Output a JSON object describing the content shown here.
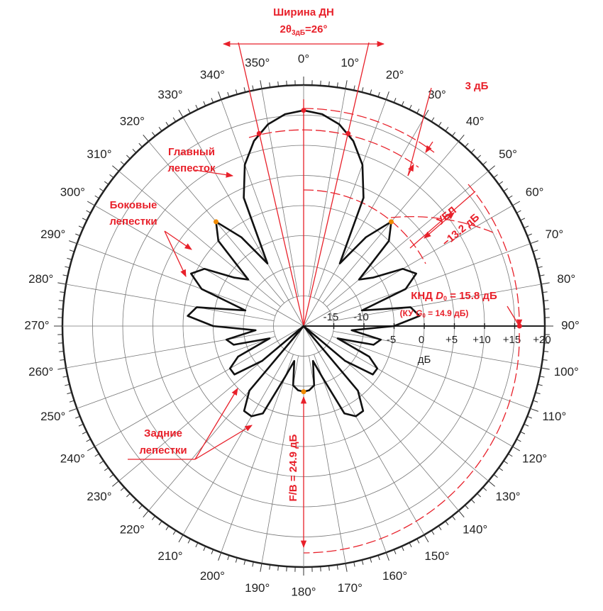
{
  "chart_data": {
    "type": "polar",
    "theta": [
      0,
      5,
      10,
      15,
      20,
      25,
      30,
      35,
      40,
      45,
      50,
      55,
      60,
      65,
      70,
      75,
      80,
      85,
      90,
      95,
      100,
      105,
      110,
      115,
      120,
      125,
      130,
      135,
      140,
      145,
      150,
      155,
      160,
      165,
      170,
      175,
      180,
      185,
      190,
      195,
      200,
      205,
      210,
      215,
      220,
      225,
      230,
      235,
      240,
      245,
      250,
      255,
      260,
      265,
      270,
      275,
      280,
      285,
      290,
      295,
      300,
      305,
      310,
      315,
      320,
      325,
      330,
      335,
      340,
      345,
      350,
      355
    ],
    "r": [
      15.8,
      15.3,
      14.0,
      11.8,
      8.5,
      3.5,
      -8,
      -2,
      2.6,
      0,
      -8,
      -6,
      -1,
      0.6,
      -2,
      -10,
      -2,
      -0.7,
      -5,
      -12,
      -7,
      -8,
      -14,
      -8,
      -5.9,
      -6,
      -11,
      -20,
      -6,
      -2.8,
      -2.7,
      -4,
      -11,
      -14,
      -10,
      -9.3,
      -9.1,
      -9.3,
      -10,
      -14,
      -11,
      -4,
      -2.7,
      -2.8,
      -6,
      -20,
      -11,
      -6,
      -5.9,
      -8,
      -14,
      -8,
      -7,
      -12,
      -5,
      -0.7,
      -2,
      -10,
      -2,
      0.6,
      -1,
      -6,
      -8,
      0,
      2.6,
      -2,
      -8,
      3.5,
      8.5,
      11.8,
      14.0,
      15.3
    ],
    "color": "#111111",
    "rlim": [
      -20,
      20
    ],
    "rticks": [
      -15,
      -10,
      -5,
      0,
      {
        "value": 5,
        "label": "+5"
      },
      {
        "value": 10,
        "label": "+10"
      },
      {
        "value": 15,
        "label": "+15"
      },
      {
        "value": 20,
        "label": "+20"
      }
    ],
    "r_label": "дБ",
    "thetaticks": [
      {
        "value": 0,
        "label": "0°"
      },
      {
        "value": 10,
        "label": "10°"
      },
      {
        "value": 20,
        "label": "20°"
      },
      {
        "value": 30,
        "label": "30°"
      },
      {
        "value": 40,
        "label": "40°"
      },
      {
        "value": 50,
        "label": "50°"
      },
      {
        "value": 60,
        "label": "60°"
      },
      {
        "value": 70,
        "label": "70°"
      },
      {
        "value": 80,
        "label": "80°"
      },
      {
        "value": 90,
        "label": "90°"
      },
      {
        "value": 100,
        "label": "100°"
      },
      {
        "value": 110,
        "label": "110°"
      },
      {
        "value": 120,
        "label": "120°"
      },
      {
        "value": 130,
        "label": "130°"
      },
      {
        "value": 140,
        "label": "140°"
      },
      {
        "value": 150,
        "label": "150°"
      },
      {
        "value": 160,
        "label": "160°"
      },
      {
        "value": 170,
        "label": "170°"
      },
      {
        "value": 180,
        "label": "180°"
      },
      {
        "value": 190,
        "label": "190°"
      },
      {
        "value": 200,
        "label": "200°"
      },
      {
        "value": 210,
        "label": "210°"
      },
      {
        "value": 220,
        "label": "220°"
      },
      {
        "value": 230,
        "label": "230°"
      },
      {
        "value": 240,
        "label": "240°"
      },
      {
        "value": 250,
        "label": "250°"
      },
      {
        "value": 260,
        "label": "260°"
      },
      {
        "value": 270,
        "label": "270°"
      },
      {
        "value": 280,
        "label": "280°"
      },
      {
        "value": 290,
        "label": "290°"
      },
      {
        "value": 300,
        "label": "300°"
      },
      {
        "value": 310,
        "label": "310°"
      },
      {
        "value": 320,
        "label": "320°"
      },
      {
        "value": 330,
        "label": "330°"
      },
      {
        "value": 340,
        "label": "340°"
      },
      {
        "value": 350,
        "label": "350°"
      }
    ],
    "markers": [
      {
        "theta": 0,
        "r": 15.8,
        "color": "#e8202a"
      },
      {
        "theta": 13,
        "r": 12.8,
        "color": "#e8202a"
      },
      {
        "theta": 347,
        "r": 12.8,
        "color": "#e8202a"
      },
      {
        "theta": 40,
        "r": 2.6,
        "color": "#f08a00"
      },
      {
        "theta": 320,
        "r": 2.6,
        "color": "#f08a00"
      },
      {
        "theta": 180,
        "r": -9.1,
        "color": "#f08a00"
      },
      {
        "theta": 90,
        "r": 15.8,
        "color": "#e8202a"
      }
    ],
    "annotations": {
      "beamwidth_title": "Ширина ДН",
      "beamwidth_value": [
        "2θ",
        "3дБ",
        "=26°"
      ],
      "halfpower_label": "3 дБ",
      "main_lobe": [
        "Главный",
        "лепесток"
      ],
      "side_lobes": [
        "Боковые",
        "лепестки"
      ],
      "sidelobe_level": [
        "УБЛ",
        "−13.2 дБ"
      ],
      "directivity": [
        "КНД ",
        "D",
        "0",
        " = 15.8 дБ"
      ],
      "gain": [
        "(КУ ",
        "G",
        "0",
        " = 14.9 дБ)"
      ],
      "back_lobes": [
        "Задние",
        "лепестки"
      ],
      "front_to_back": "F/B = 24.9 дБ"
    }
  }
}
